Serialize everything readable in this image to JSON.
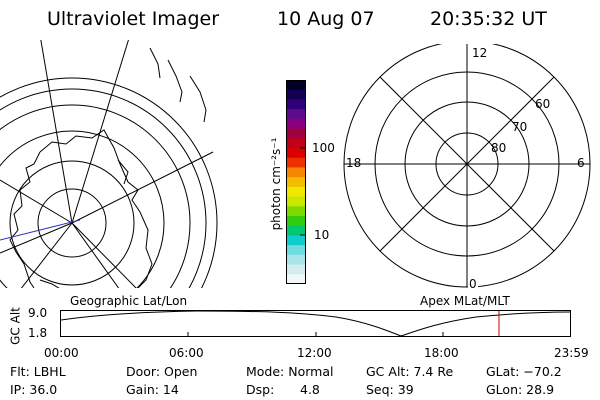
{
  "header": {
    "title": "Ultraviolet Imager",
    "date": "10 Aug 07",
    "time": "20:35:32 UT"
  },
  "colorbar": {
    "label": "photon cm⁻²s⁻¹",
    "ticks": [
      "100",
      "10"
    ],
    "colors": [
      "#000028",
      "#140050",
      "#300078",
      "#5c0c8c",
      "#880080",
      "#a00040",
      "#c00018",
      "#d80000",
      "#ef3000",
      "#f58800",
      "#f5bc00",
      "#f0e800",
      "#c8e800",
      "#80d800",
      "#30cc10",
      "#00c870",
      "#10cccc",
      "#70dce0",
      "#a8e4e8",
      "#d4eeee",
      "#f2f8f8"
    ]
  },
  "geo_map": {
    "label": "Geographic Lat/Lon",
    "coast_color": "#000000",
    "track_color": "#3030c8"
  },
  "polar": {
    "label": "Apex  MLat/MLT",
    "mlt_labels": {
      "top": "12",
      "left": "18",
      "right": "6",
      "bottom": "0"
    },
    "lat_labels": [
      "60",
      "70",
      "80"
    ]
  },
  "altitude_plot": {
    "ylabel": "GC Alt",
    "ymax": "9.0",
    "ymin": "1.8",
    "time_ticks": [
      "00:00",
      "06:00",
      "12:00",
      "18:00",
      "23:59"
    ],
    "marker_color": "#cc0000"
  },
  "footer": {
    "filter": "Flt: LBHL",
    "ip": "IP: 36.0",
    "door": "Door: Open",
    "gain": "Gain: 14",
    "mode": "Mode: Normal",
    "dsp_label": "Dsp:",
    "dsp_value": "4.8",
    "gc_alt": "GC Alt: 7.4 Re",
    "seq": "Seq: 39",
    "glat": "GLat: −70.2",
    "glon": "GLon:  28.9"
  }
}
